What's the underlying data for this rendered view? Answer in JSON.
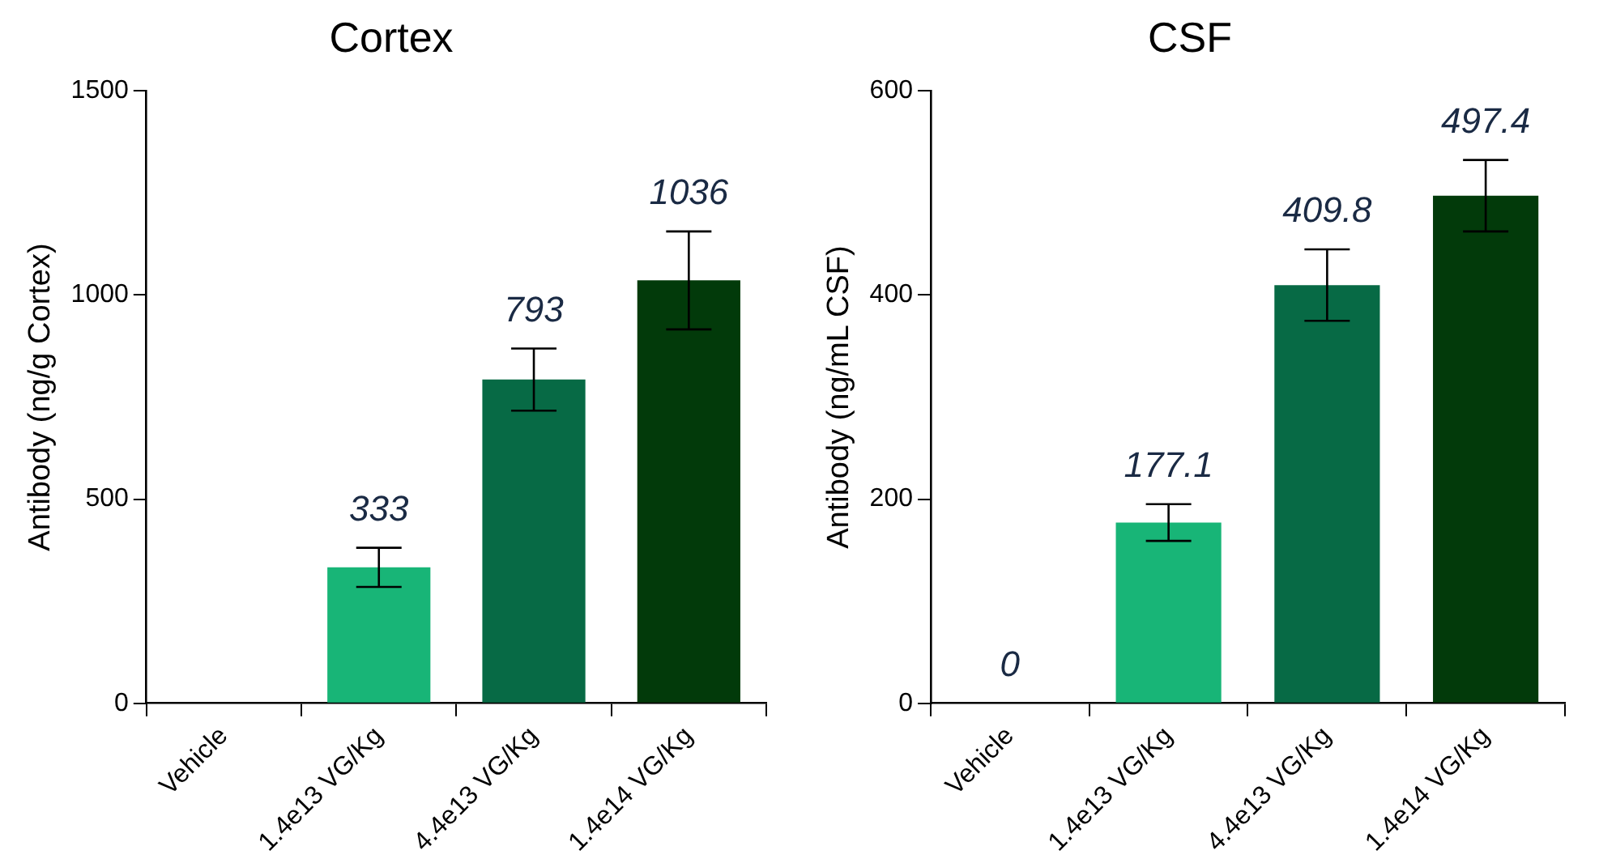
{
  "chart_data": [
    {
      "type": "bar",
      "title": "Cortex",
      "ylabel": "Antibody (ng/g Cortex)",
      "categories": [
        "Vehicle",
        "1.4e13 VG/Kg",
        "4.4e13 VG/Kg",
        "1.4e14 VG/Kg"
      ],
      "values": [
        0,
        333,
        793,
        1036
      ],
      "colors": [
        "#18b577",
        "#18b577",
        "#076a45",
        "#023a0a"
      ],
      "errors": [
        null,
        48,
        76,
        120
      ],
      "value_labels": [
        null,
        "333",
        "793",
        "1036"
      ],
      "ylim": [
        0,
        1500
      ],
      "yticks": [
        0,
        500,
        1000,
        1500
      ],
      "grid": false,
      "legend": false
    },
    {
      "type": "bar",
      "title": "CSF",
      "ylabel": "Antibody (ng/mL CSF)",
      "categories": [
        "Vehicle",
        "1.4e13 VG/Kg",
        "4.4e13 VG/Kg",
        "1.4e14 VG/Kg"
      ],
      "values": [
        0,
        177.1,
        409.8,
        497.4
      ],
      "colors": [
        "#18b577",
        "#18b577",
        "#076a45",
        "#023a0a"
      ],
      "errors": [
        null,
        18,
        35,
        35
      ],
      "data_labels": true,
      "ylim": [
        0,
        600
      ],
      "yticks": [
        0,
        200,
        400,
        600
      ],
      "grid": false,
      "legend": false
    }
  ]
}
